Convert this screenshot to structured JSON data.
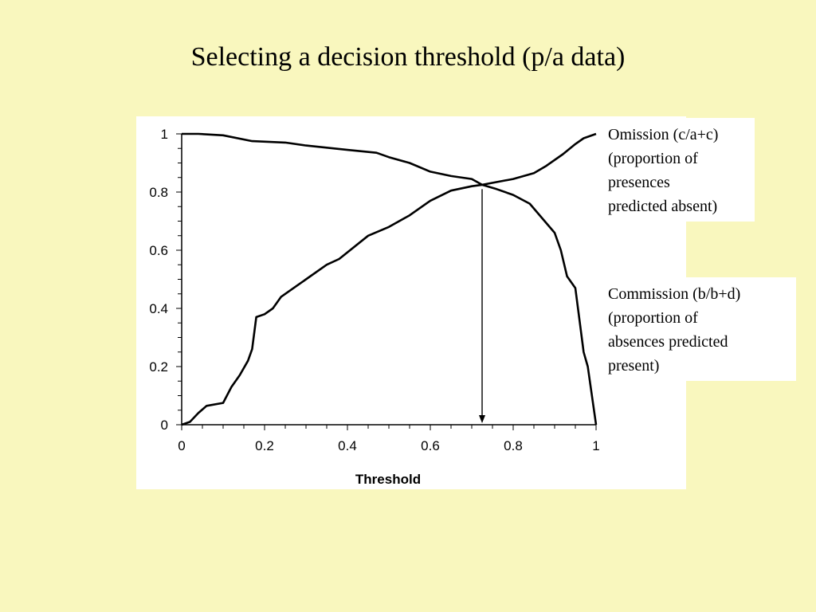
{
  "slide": {
    "title": "Selecting a decision threshold (p/a data)"
  },
  "legend": {
    "omission": [
      "Omission  (c/a+c)",
      "(proportion of",
      "presences",
      "predicted absent)"
    ],
    "commission": [
      "Commission   (b/b+d)",
      "(proportion of",
      "absences predicted",
      "present)"
    ]
  },
  "chart_data": {
    "type": "line",
    "xlabel": "Threshold",
    "ylabel": "",
    "xlim": [
      0,
      1
    ],
    "ylim": [
      0,
      1
    ],
    "xticks": [
      0,
      0.2,
      0.4,
      0.6,
      0.8,
      1
    ],
    "xtick_labels": [
      "0",
      "0.2",
      "0.4",
      "0.6",
      "0.8",
      "1"
    ],
    "yticks": [
      0,
      0.2,
      0.4,
      0.6,
      0.8,
      1
    ],
    "ytick_labels": [
      "0",
      "0.2",
      "0.4",
      "0.6",
      "0.8",
      "1"
    ],
    "grid": false,
    "threshold_marker": 0.725,
    "series": [
      {
        "color": "#000000",
        "x": [
          0,
          0.04,
          0.1,
          0.17,
          0.25,
          0.3,
          0.4,
          0.47,
          0.5,
          0.55,
          0.6,
          0.65,
          0.7,
          0.725,
          0.76,
          0.8,
          0.84,
          0.87,
          0.9,
          0.915,
          0.93,
          0.95,
          0.96,
          0.97,
          0.98,
          0.99,
          1.0
        ],
        "y": [
          1.0,
          1.0,
          0.995,
          0.975,
          0.97,
          0.96,
          0.945,
          0.935,
          0.92,
          0.9,
          0.87,
          0.855,
          0.845,
          0.825,
          0.81,
          0.79,
          0.76,
          0.71,
          0.66,
          0.6,
          0.51,
          0.47,
          0.36,
          0.25,
          0.2,
          0.1,
          0.0
        ]
      },
      {
        "color": "#000000",
        "x": [
          0,
          0.02,
          0.04,
          0.06,
          0.1,
          0.12,
          0.14,
          0.16,
          0.17,
          0.18,
          0.2,
          0.22,
          0.24,
          0.28,
          0.3,
          0.35,
          0.38,
          0.45,
          0.5,
          0.55,
          0.6,
          0.65,
          0.7,
          0.725,
          0.8,
          0.85,
          0.88,
          0.92,
          0.95,
          0.97,
          1.0
        ],
        "y": [
          0.0,
          0.01,
          0.04,
          0.065,
          0.075,
          0.13,
          0.17,
          0.22,
          0.26,
          0.37,
          0.38,
          0.4,
          0.44,
          0.48,
          0.5,
          0.55,
          0.57,
          0.65,
          0.68,
          0.72,
          0.77,
          0.805,
          0.82,
          0.825,
          0.845,
          0.865,
          0.89,
          0.93,
          0.965,
          0.985,
          1.0
        ]
      }
    ]
  }
}
